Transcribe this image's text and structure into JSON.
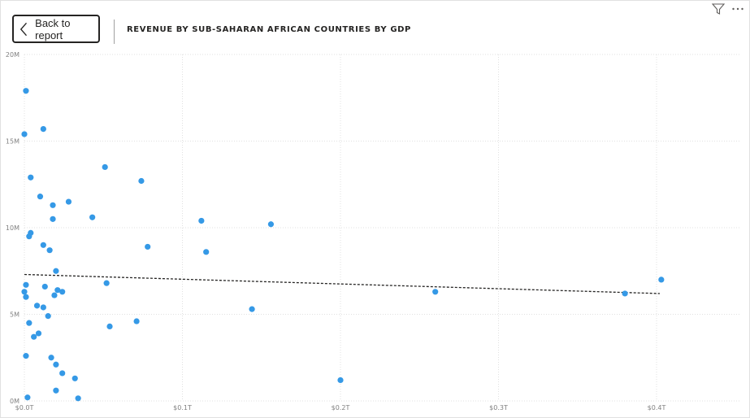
{
  "header": {
    "back_label": "Back to report",
    "title": "REVENUE BY SUB-SAHARAN AFRICAN COUNTRIES BY GDP"
  },
  "icons": {
    "filter": "filter-icon",
    "more": "more-options-icon",
    "back": "chevron-left-icon"
  },
  "colors": {
    "point": "#3599e6",
    "grid": "#e0e0e0",
    "trend": "#252423"
  },
  "chart_data": {
    "type": "scatter",
    "title": "REVENUE BY SUB-SAHARAN AFRICAN COUNTRIES BY GDP",
    "xlabel": "",
    "ylabel": "",
    "x_unit": "T",
    "y_unit": "M",
    "xlim": [
      0,
      0.45
    ],
    "ylim": [
      0,
      20
    ],
    "x_ticks": [
      {
        "value": 0,
        "label": "$0.0T"
      },
      {
        "value": 0.1,
        "label": "$0.1T"
      },
      {
        "value": 0.2,
        "label": "$0.2T"
      },
      {
        "value": 0.3,
        "label": "$0.3T"
      },
      {
        "value": 0.4,
        "label": "$0.4T"
      }
    ],
    "y_ticks": [
      {
        "value": 0,
        "label": "0M"
      },
      {
        "value": 5,
        "label": "5M"
      },
      {
        "value": 10,
        "label": "10M"
      },
      {
        "value": 15,
        "label": "15M"
      },
      {
        "value": 20,
        "label": "20M"
      }
    ],
    "grid": true,
    "points": [
      [
        0.001,
        17.9
      ],
      [
        0.0,
        15.4
      ],
      [
        0.012,
        15.7
      ],
      [
        0.051,
        13.5
      ],
      [
        0.004,
        12.9
      ],
      [
        0.074,
        12.7
      ],
      [
        0.01,
        11.8
      ],
      [
        0.028,
        11.5
      ],
      [
        0.018,
        11.3
      ],
      [
        0.043,
        10.6
      ],
      [
        0.018,
        10.5
      ],
      [
        0.112,
        10.4
      ],
      [
        0.156,
        10.2
      ],
      [
        0.004,
        9.7
      ],
      [
        0.003,
        9.5
      ],
      [
        0.012,
        9.0
      ],
      [
        0.078,
        8.9
      ],
      [
        0.016,
        8.7
      ],
      [
        0.115,
        8.6
      ],
      [
        0.02,
        7.5
      ],
      [
        0.001,
        6.7
      ],
      [
        0.052,
        6.8
      ],
      [
        0.013,
        6.6
      ],
      [
        0.021,
        6.4
      ],
      [
        0.024,
        6.3
      ],
      [
        0.0,
        6.3
      ],
      [
        0.26,
        6.3
      ],
      [
        0.38,
        6.2
      ],
      [
        0.019,
        6.1
      ],
      [
        0.001,
        6.0
      ],
      [
        0.403,
        7.0
      ],
      [
        0.008,
        5.5
      ],
      [
        0.012,
        5.4
      ],
      [
        0.144,
        5.3
      ],
      [
        0.015,
        4.9
      ],
      [
        0.003,
        4.5
      ],
      [
        0.071,
        4.6
      ],
      [
        0.054,
        4.3
      ],
      [
        0.009,
        3.9
      ],
      [
        0.006,
        3.7
      ],
      [
        0.001,
        2.6
      ],
      [
        0.017,
        2.5
      ],
      [
        0.02,
        2.1
      ],
      [
        0.024,
        1.6
      ],
      [
        0.032,
        1.3
      ],
      [
        0.2,
        1.2
      ],
      [
        0.02,
        0.6
      ],
      [
        0.002,
        0.2
      ],
      [
        0.034,
        0.15
      ]
    ],
    "trendline": {
      "x": [
        0.0,
        0.402
      ],
      "y": [
        7.3,
        6.2
      ],
      "style": "dashed"
    }
  }
}
